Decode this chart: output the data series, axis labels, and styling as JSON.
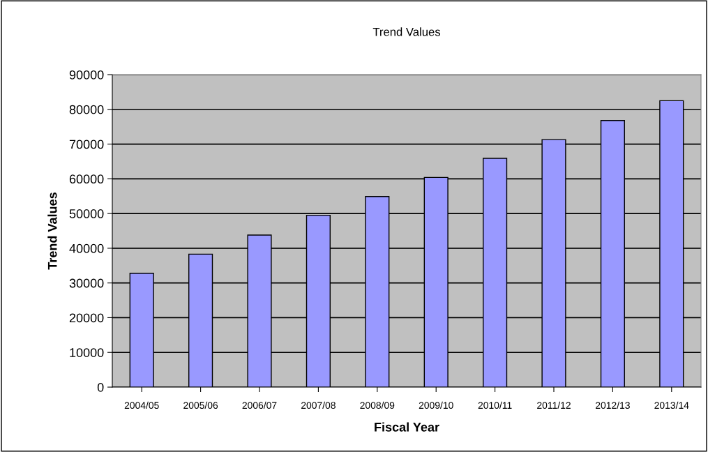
{
  "chart_data": {
    "type": "bar",
    "title": "Trend Values",
    "xlabel": "Fiscal Year",
    "ylabel": "Trend Values",
    "categories": [
      "2004/05",
      "2005/06",
      "2006/07",
      "2007/08",
      "2008/09",
      "2009/10",
      "2010/11",
      "2011/12",
      "2012/13",
      "2013/14"
    ],
    "values": [
      32800,
      38300,
      43800,
      49500,
      54900,
      60400,
      65900,
      71300,
      76800,
      82500
    ],
    "color": "#9999ff",
    "ylim": [
      0,
      90000
    ],
    "yticks": [
      0,
      10000,
      20000,
      30000,
      40000,
      50000,
      60000,
      70000,
      80000,
      90000
    ],
    "grid": "y"
  }
}
